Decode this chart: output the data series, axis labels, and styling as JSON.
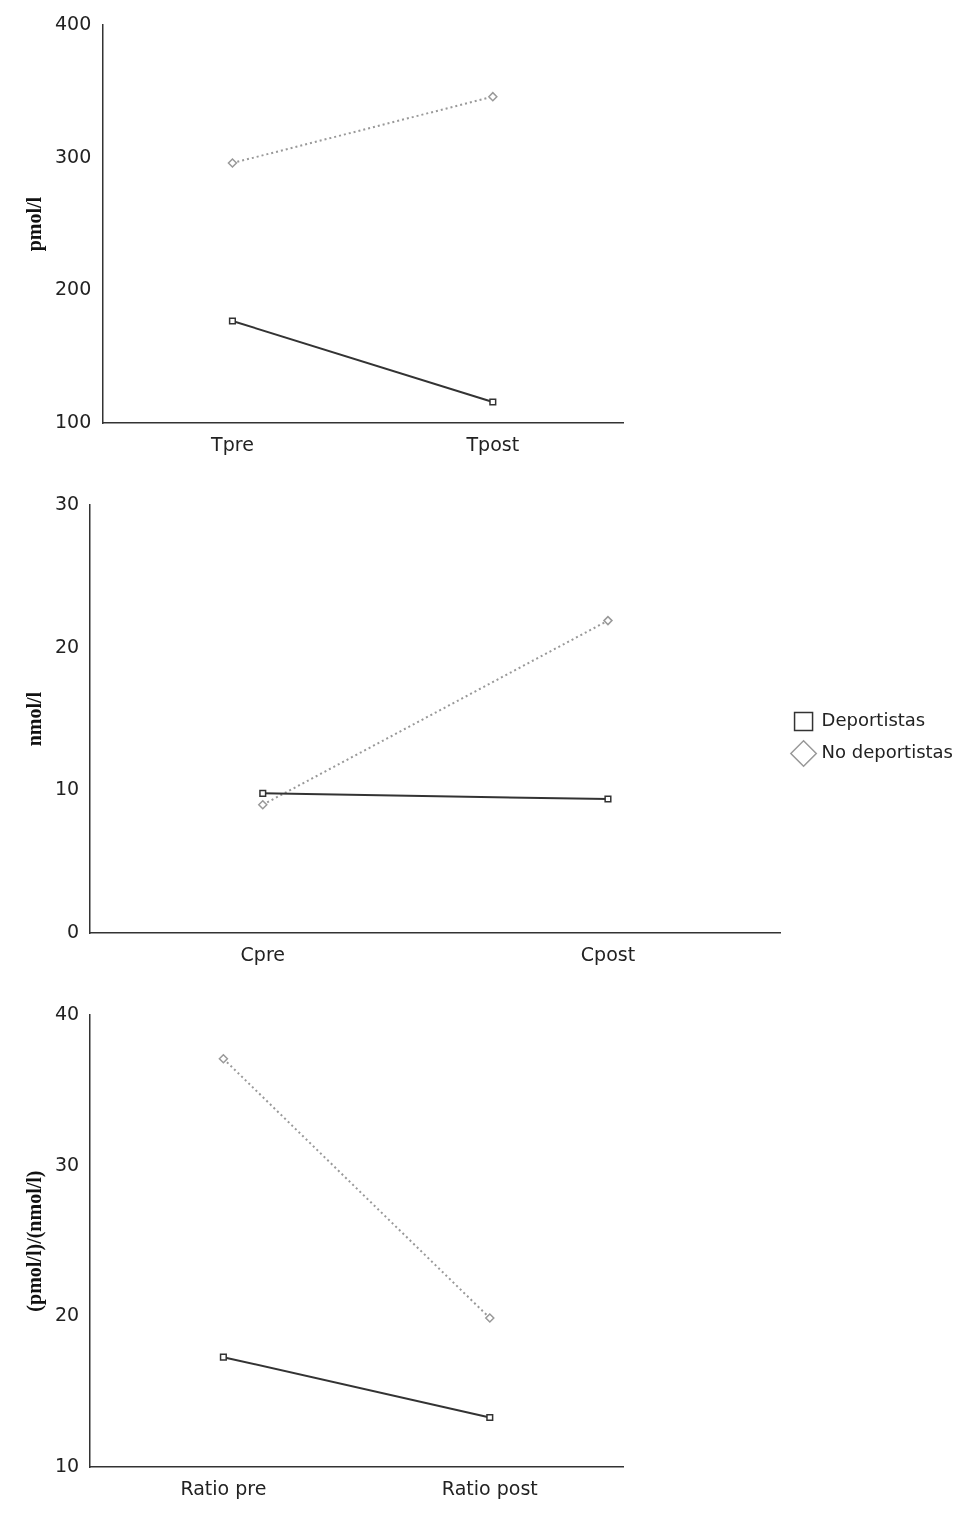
{
  "chart_data": [
    {
      "type": "line",
      "ylabel": "pmol/l",
      "categories": [
        "Tpre",
        "Tpost"
      ],
      "ylim": [
        100,
        400
      ],
      "yticks": [
        100,
        200,
        300,
        400
      ],
      "grid": false,
      "legend": false,
      "series": [
        {
          "color": "#333333",
          "values": [
            177,
            116
          ],
          "marker": "square",
          "line_style": "solid"
        },
        {
          "color": "#999999",
          "values": [
            296,
            346
          ],
          "marker": "diamond",
          "line_style": "dotted"
        }
      ]
    },
    {
      "type": "line",
      "ylabel": "nmol/l",
      "categories": [
        "Cpre",
        "Cpost"
      ],
      "ylim": [
        0,
        30
      ],
      "yticks": [
        0,
        10,
        20,
        30
      ],
      "grid": false,
      "legend": "right",
      "series": [
        {
          "name": "Deportistas",
          "color": "#333333",
          "values": [
            9.8,
            9.4
          ],
          "marker": "square",
          "line_style": "solid"
        },
        {
          "name": "No deportistas",
          "color": "#999999",
          "values": [
            9.0,
            21.9
          ],
          "marker": "diamond",
          "line_style": "dotted"
        }
      ]
    },
    {
      "type": "line",
      "ylabel": "(pmol/l)/(nmol/l)",
      "categories": [
        "Ratio pre",
        "Ratio post"
      ],
      "ylim": [
        10,
        40
      ],
      "yticks": [
        10,
        20,
        30,
        40
      ],
      "grid": false,
      "legend": false,
      "series": [
        {
          "color": "#333333",
          "values": [
            17.3,
            13.3
          ],
          "marker": "square",
          "line_style": "solid"
        },
        {
          "color": "#999999",
          "values": [
            37.1,
            19.9
          ],
          "marker": "diamond",
          "line_style": "dotted"
        }
      ]
    }
  ]
}
